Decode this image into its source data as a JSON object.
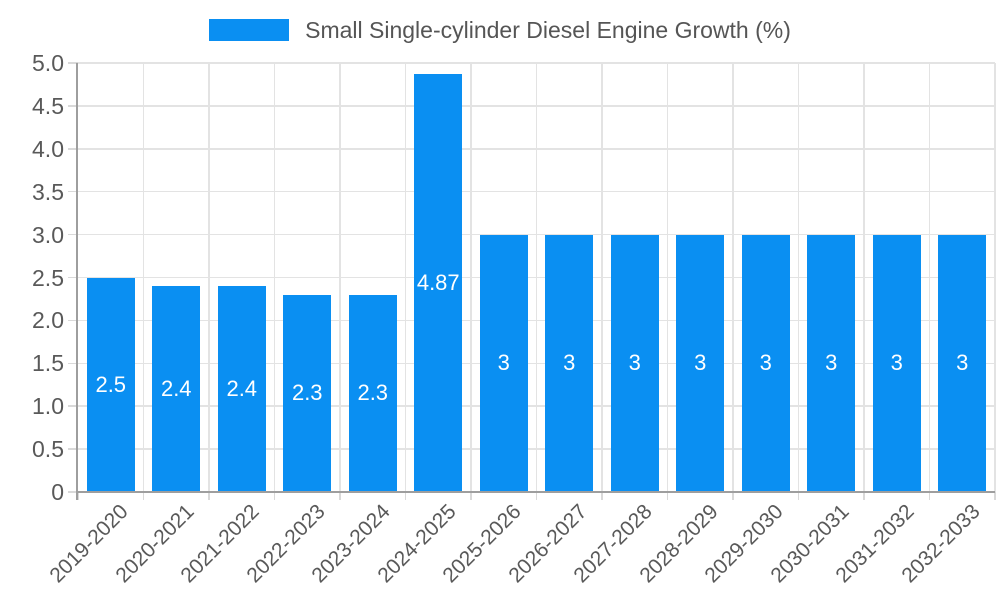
{
  "chart_data": {
    "type": "bar",
    "title": "Small Single-cylinder Diesel Engine Growth (%)",
    "categories": [
      "2019-2020",
      "2020-2021",
      "2021-2022",
      "2022-2023",
      "2023-2024",
      "2024-2025",
      "2025-2026",
      "2026-2027",
      "2027-2028",
      "2028-2029",
      "2029-2030",
      "2030-2031",
      "2031-2032",
      "2032-2033"
    ],
    "values": [
      2.5,
      2.4,
      2.4,
      2.3,
      2.3,
      4.87,
      3,
      3,
      3,
      3,
      3,
      3,
      3,
      3
    ],
    "value_labels": [
      "2.5",
      "2.4",
      "2.4",
      "2.3",
      "2.3",
      "4.87",
      "3",
      "3",
      "3",
      "3",
      "3",
      "3",
      "3",
      "3"
    ],
    "xlabel": "",
    "ylabel": "",
    "ylim": [
      0,
      5
    ],
    "yticks": [
      0,
      0.5,
      1,
      1.5,
      2,
      2.5,
      3,
      3.5,
      4,
      4.5,
      5
    ],
    "ytick_labels": [
      "0",
      "0.5",
      "1.0",
      "1.5",
      "2.0",
      "2.5",
      "3.0",
      "3.5",
      "4.0",
      "4.5",
      "5.0"
    ],
    "grid": true,
    "legend_position": "top",
    "colors": {
      "bar": "#0a8ff2",
      "grid": "#e3e3e3",
      "tick": "#d9d9d9",
      "axis": "#9e9e9e",
      "tick_text": "#595959",
      "title_text": "#555555",
      "value_text": "#ffffff",
      "background": "#ffffff"
    }
  }
}
